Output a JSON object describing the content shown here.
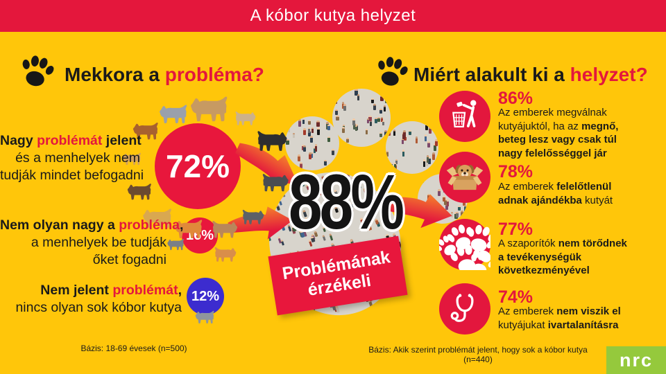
{
  "header": {
    "title": "A kóbor kutya helyzet"
  },
  "colors": {
    "background_yellow": "#FFC60A",
    "accent_red": "#E3173D",
    "header_red": "#E4173C",
    "blue": "#3C2CCF",
    "logo_green": "#95C93C",
    "crowd_gray": "#D8D4CC"
  },
  "left": {
    "heading": [
      {
        "t": "Mekkora a ",
        "b": true
      },
      {
        "t": "probléma?",
        "b": true,
        "r": true
      }
    ],
    "heading_icon": "paw-icon",
    "stats": [
      {
        "value": "72%",
        "lines": [
          [
            {
              "t": "Nagy ",
              "b": true
            },
            {
              "t": "problémát",
              "b": true,
              "r": true
            },
            {
              "t": " jelent",
              "b": true
            }
          ],
          [
            {
              "t": "és a menhelyek nem"
            }
          ],
          [
            {
              "t": "tudják mindet befogadni"
            }
          ]
        ]
      },
      {
        "value": "16%",
        "lines": [
          [
            {
              "t": "Nem olyan nagy a ",
              "b": true
            },
            {
              "t": "probléma",
              "b": true,
              "r": true
            },
            {
              "t": ",",
              "b": true
            }
          ],
          [
            {
              "t": "a menhelyek be tudják"
            }
          ],
          [
            {
              "t": "őket fogadni"
            }
          ]
        ]
      },
      {
        "value": "12%",
        "lines": [
          [
            {
              "t": "Nem jelent ",
              "b": true
            },
            {
              "t": "problémát",
              "b": true,
              "r": true
            },
            {
              "t": ",",
              "b": true
            }
          ],
          [
            {
              "t": "nincs olyan sok kóbor kutya"
            }
          ]
        ]
      }
    ],
    "basis": "Bázis: 18-69 évesek (n=500)"
  },
  "center": {
    "value": "88%",
    "banner_lines": [
      "Problémának",
      "érzékeli"
    ],
    "collage_icon": "crowd-people-paw-collage",
    "arrow_icons": [
      "arrow-icon",
      "arrow-icon",
      "arrow-icon"
    ]
  },
  "right": {
    "heading": [
      {
        "t": "Miért alakult ki a ",
        "b": true
      },
      {
        "t": "helyzet?",
        "b": true,
        "r": true
      }
    ],
    "heading_icon": "paw-icon",
    "stats": [
      {
        "value": "86%",
        "icon": "litter-person-trash-icon",
        "lines": [
          [
            {
              "t": "Az emberek megválnak"
            }
          ],
          [
            {
              "t": "kutyájuktól, ha az "
            },
            {
              "t": "megnő,",
              "b": true
            }
          ],
          [
            {
              "t": "beteg lesz vagy csak túl",
              "b": true
            }
          ],
          [
            {
              "t": "nagy felelősséggel jár",
              "b": true
            }
          ]
        ]
      },
      {
        "value": "78%",
        "icon": "dog-in-box-icon",
        "lines": [
          [
            {
              "t": "Az emberek "
            },
            {
              "t": "felelőtlenül",
              "b": true
            }
          ],
          [
            {
              "t": "adnak ajándékba",
              "b": true
            },
            {
              "t": " kutyát"
            }
          ]
        ]
      },
      {
        "value": "77%",
        "icon": "paw-prints-icon",
        "lines": [
          [
            {
              "t": "A szaporítók "
            },
            {
              "t": "nem törődnek",
              "b": true
            }
          ],
          [
            {
              "t": "a tevékenységük",
              "b": true
            }
          ],
          [
            {
              "t": "következményével",
              "b": true
            }
          ]
        ]
      },
      {
        "value": "74%",
        "icon": "stethoscope-icon",
        "lines": [
          [
            {
              "t": "Az emberek "
            },
            {
              "t": "nem viszik el",
              "b": true
            }
          ],
          [
            {
              "t": "kutyájukat "
            },
            {
              "t": "ivartalanításra",
              "b": true
            }
          ]
        ]
      }
    ],
    "basis": "Bázis: Akik szerint problémát jelent, hogy sok a kóbor kutya (n=440)"
  },
  "logo": {
    "text": "nrc"
  },
  "chart_data": [
    {
      "type": "bar",
      "title": "Mekkora a probléma?",
      "categories": [
        "Nagy problémát jelent és a menhelyek nem tudják mindet befogadni",
        "Nem olyan nagy a probléma, a menhelyek be tudják őket fogadni",
        "Nem jelent problémát, nincs olyan sok kóbor kutya"
      ],
      "values": [
        72,
        16,
        12
      ],
      "annotation": "88% Problémának érzékeli",
      "note": "Bázis: 18-69 évesek (n=500)"
    },
    {
      "type": "bar",
      "title": "Miért alakult ki a helyzet?",
      "categories": [
        "Az emberek megválnak kutyájuktól, ha az megnő, beteg lesz vagy csak túl nagy felelősséggel jár",
        "Az emberek felelőtlenül adnak ajándékba kutyát",
        "A szaporítók nem törődnek a tevékenységük következményével",
        "Az emberek nem viszik el kutyájukat ivartalanításra"
      ],
      "values": [
        86,
        78,
        77,
        74
      ],
      "note": "Bázis: Akik szerint problémát jelent, hogy sok a kóbor kutya (n=440)"
    }
  ]
}
